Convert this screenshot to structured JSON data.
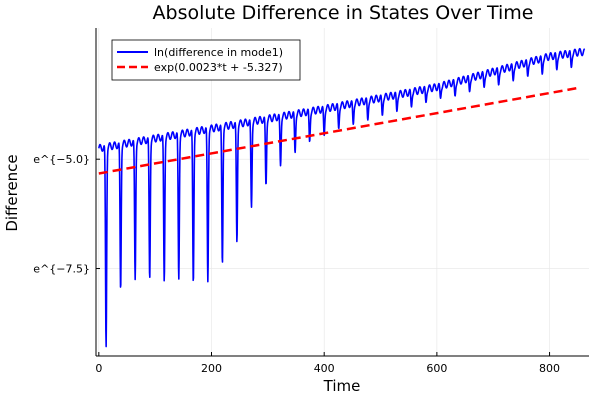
{
  "chart_data": {
    "type": "line",
    "title": "Absolute Difference in States Over Time",
    "xlabel": "Time",
    "ylabel": "Difference",
    "xlim": [
      -5,
      870
    ],
    "ylim": [
      -9.5,
      -2.0
    ],
    "x_ticks": [
      0,
      200,
      400,
      600,
      800
    ],
    "x_tick_labels": [
      "0",
      "200",
      "400",
      "600",
      "800"
    ],
    "y_ticks": [
      -5.0,
      -7.5
    ],
    "y_tick_labels": [
      "e^{−5.0}",
      "e^{−7.5}"
    ],
    "grid": true,
    "legend_position": "top-left",
    "series": [
      {
        "name": "ln(difference in mode1)",
        "color": "#0000ff",
        "style": "solid",
        "oscillation": {
          "period": 25.8,
          "start": 0,
          "end": 862,
          "peaks": [
            {
              "x": 0,
              "y": -4.75
            },
            {
              "x": 200,
              "y": -4.3
            },
            {
              "x": 400,
              "y": -3.85
            },
            {
              "x": 600,
              "y": -3.35
            },
            {
              "x": 800,
              "y": -2.65
            },
            {
              "x": 855,
              "y": -2.55
            }
          ],
          "troughs": [
            {
              "x": 17,
              "y": -9.3
            },
            {
              "x": 42,
              "y": -8.0
            },
            {
              "x": 68,
              "y": -7.75
            },
            {
              "x": 94,
              "y": -7.75
            },
            {
              "x": 120,
              "y": -7.8
            },
            {
              "x": 145,
              "y": -7.75
            },
            {
              "x": 171,
              "y": -7.85
            },
            {
              "x": 197,
              "y": -7.8
            },
            {
              "x": 223,
              "y": -7.4
            },
            {
              "x": 249,
              "y": -6.9
            },
            {
              "x": 274,
              "y": -6.1
            },
            {
              "x": 300,
              "y": -5.6
            },
            {
              "x": 326,
              "y": -5.15
            },
            {
              "x": 352,
              "y": -4.85
            },
            {
              "x": 378,
              "y": -4.6
            },
            {
              "x": 403,
              "y": -4.45
            },
            {
              "x": 429,
              "y": -4.3
            },
            {
              "x": 455,
              "y": -4.2
            },
            {
              "x": 481,
              "y": -4.1
            },
            {
              "x": 507,
              "y": -4.0
            },
            {
              "x": 532,
              "y": -3.9
            },
            {
              "x": 558,
              "y": -3.8
            },
            {
              "x": 584,
              "y": -3.7
            },
            {
              "x": 610,
              "y": -3.6
            },
            {
              "x": 636,
              "y": -3.55
            },
            {
              "x": 661,
              "y": -3.45
            },
            {
              "x": 687,
              "y": -3.35
            },
            {
              "x": 713,
              "y": -3.3
            },
            {
              "x": 739,
              "y": -3.2
            },
            {
              "x": 765,
              "y": -3.1
            },
            {
              "x": 790,
              "y": -3.05
            },
            {
              "x": 816,
              "y": -2.95
            },
            {
              "x": 842,
              "y": -2.9
            }
          ]
        }
      },
      {
        "name": "exp(0.0023*t + -5.327)",
        "color": "#ff0000",
        "style": "dashed",
        "x": [
          0,
          855
        ],
        "y": [
          -5.327,
          -3.3605
        ]
      }
    ]
  }
}
